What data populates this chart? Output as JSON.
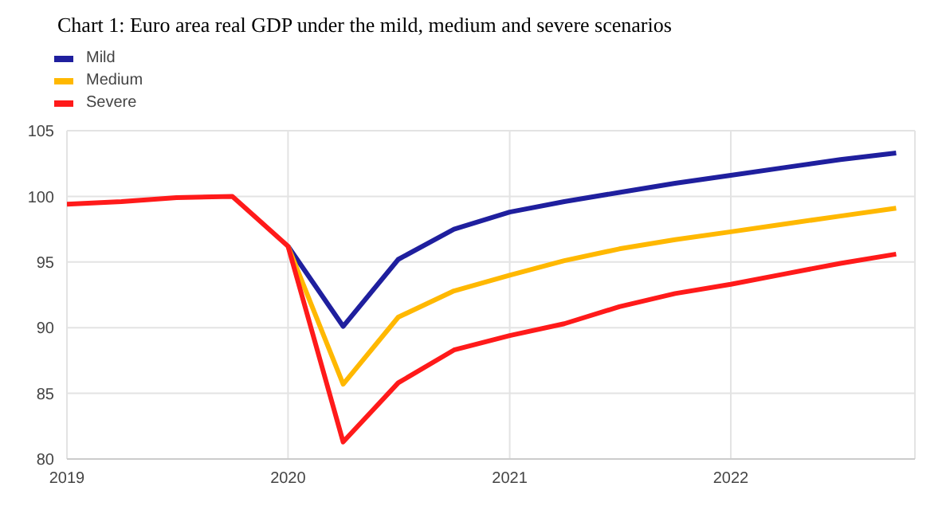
{
  "chart_data": {
    "type": "line",
    "title": "Chart 1: Euro area real GDP under the mild, medium and severe scenarios",
    "x": [
      "2019-01",
      "2019-04",
      "2019-07",
      "2019-10",
      "2020-01",
      "2020-04",
      "2020-07",
      "2020-10",
      "2021-01",
      "2021-04",
      "2021-07",
      "2021-10",
      "2022-01",
      "2022-04",
      "2022-07",
      "2022-10"
    ],
    "series": [
      {
        "name": "Mild",
        "color": "#1f1f9e",
        "values": [
          null,
          null,
          null,
          null,
          96.2,
          90.1,
          95.2,
          97.5,
          98.8,
          99.6,
          100.3,
          101.0,
          101.6,
          102.2,
          102.8,
          103.3
        ]
      },
      {
        "name": "Medium",
        "color": "#ffb800",
        "values": [
          null,
          null,
          null,
          null,
          96.2,
          85.7,
          90.8,
          92.8,
          94.0,
          95.1,
          96.0,
          96.7,
          97.3,
          97.9,
          98.5,
          99.1
        ]
      },
      {
        "name": "Severe",
        "color": "#ff1a1a",
        "values": [
          99.4,
          99.6,
          99.9,
          100.0,
          96.2,
          81.3,
          85.8,
          88.3,
          89.4,
          90.3,
          91.6,
          92.6,
          93.3,
          94.1,
          94.9,
          95.6
        ]
      }
    ],
    "xlim": [
      "2019-01",
      "2022-11"
    ],
    "xticks": [
      "2019",
      "2020",
      "2021",
      "2022"
    ],
    "ylim": [
      80,
      105
    ],
    "yticks": [
      80,
      85,
      90,
      95,
      100,
      105
    ],
    "grid": true,
    "legend": "top left",
    "marker": "none",
    "line_style": "solid"
  }
}
